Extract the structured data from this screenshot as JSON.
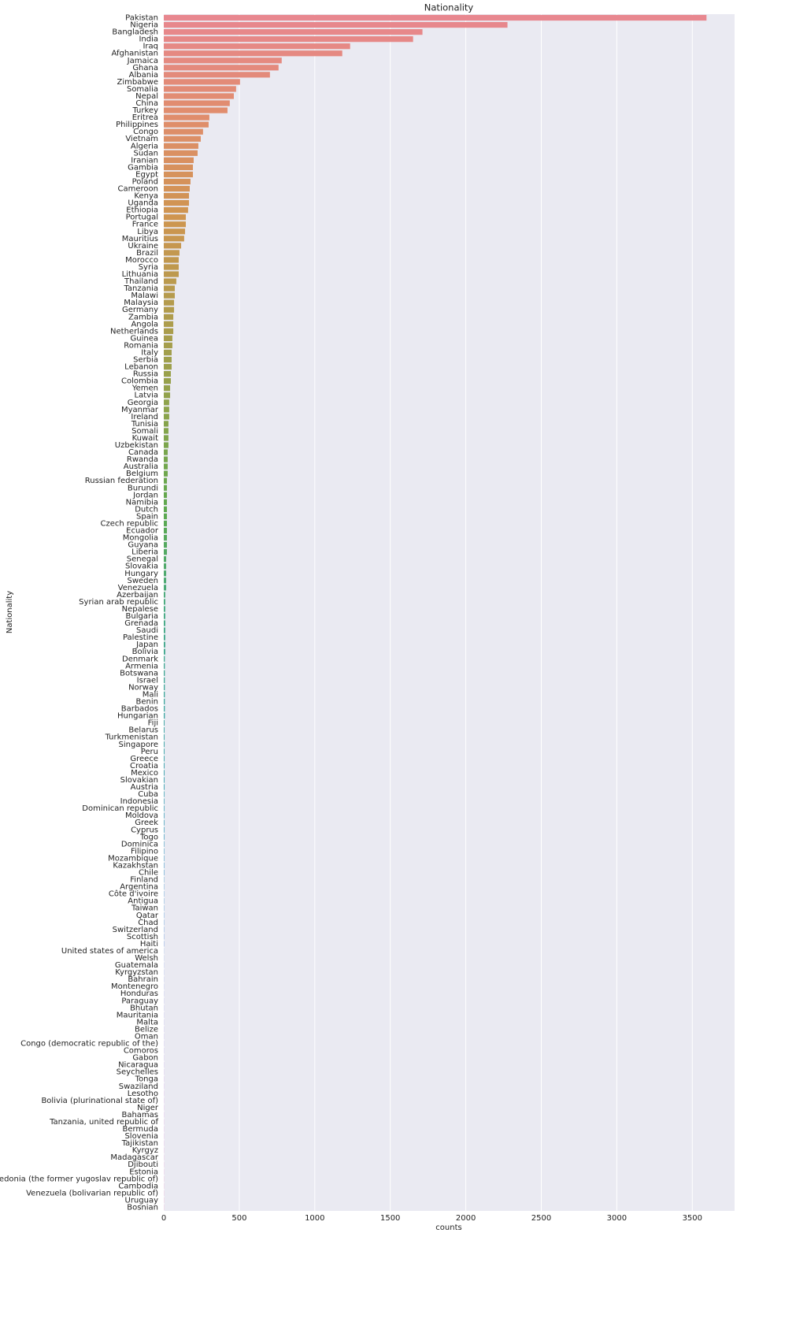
{
  "chart_data": {
    "type": "barh",
    "title": "Nationality",
    "xlabel": "counts",
    "ylabel": "Nationality",
    "categories": [
      "Pakistan",
      "Nigeria",
      "Bangladesh",
      "India",
      "Iraq",
      "Afghanistan",
      "Jamaica",
      "Ghana",
      "Albania",
      "Zimbabwe",
      "Somalia",
      "Nepal",
      "China",
      "Turkey",
      "Eritrea",
      "Philippines",
      "Congo",
      "Vietnam",
      "Algeria",
      "Sudan",
      "Iranian",
      "Gambia",
      "Egypt",
      "Poland",
      "Cameroon",
      "Kenya",
      "Uganda",
      "Ethiopia",
      "Portugal",
      "France",
      "Libya",
      "Mauritius",
      "Ukraine",
      "Brazil",
      "Morocco",
      "Syria",
      "Lithuania",
      "Thailand",
      "Tanzania",
      "Malawi",
      "Malaysia",
      "Germany",
      "Zambia",
      "Angola",
      "Netherlands",
      "Guinea",
      "Romania",
      "Italy",
      "Serbia",
      "Lebanon",
      "Russia",
      "Colombia",
      "Yemen",
      "Latvia",
      "Georgia",
      "Myanmar",
      "Ireland",
      "Tunisia",
      "Somali",
      "Kuwait",
      "Uzbekistan",
      "Canada",
      "Rwanda",
      "Australia",
      "Belgium",
      "Russian federation",
      "Burundi",
      "Jordan",
      "Namibia",
      "Dutch",
      "Spain",
      "Czech republic",
      "Ecuador",
      "Mongolia",
      "Guyana",
      "Liberia",
      "Senegal",
      "Slovakia",
      "Hungary",
      "Sweden",
      "Venezuela",
      "Azerbaijan",
      "Syrian arab republic",
      "Nepalese",
      "Bulgaria",
      "Grenada",
      "Saudi",
      "Palestine",
      "Japan",
      "Bolivia",
      "Denmark",
      "Armenia",
      "Botswana",
      "Israel",
      "Norway",
      "Mali",
      "Benin",
      "Barbados",
      "Hungarian",
      "Fiji",
      "Belarus",
      "Turkmenistan",
      "Singapore",
      "Peru",
      "Greece",
      "Croatia",
      "Mexico",
      "Slovakian",
      "Austria",
      "Cuba",
      "Indonesia",
      "Dominican republic",
      "Moldova",
      "Greek",
      "Cyprus",
      "Togo",
      "Dominica",
      "Filipino",
      "Mozambique",
      "Kazakhstan",
      "Chile",
      "Finland",
      "Argentina",
      "Côte d'ivoire",
      "Antigua",
      "Taiwan",
      "Qatar",
      "Chad",
      "Switzerland",
      "Scottish",
      "Haiti",
      "United states of america",
      "Welsh",
      "Guatemala",
      "Kyrgyzstan",
      "Bahrain",
      "Montenegro",
      "Honduras",
      "Paraguay",
      "Bhutan",
      "Mauritania",
      "Malta",
      "Belize",
      "Oman",
      "Congo (democratic republic of the)",
      "Comoros",
      "Gabon",
      "Nicaragua",
      "Seychelles",
      "Tonga",
      "Swaziland",
      "Lesotho",
      "Bolivia (plurinational state of)",
      "Niger",
      "Bahamas",
      "Tanzania, united republic of",
      "Bermuda",
      "Slovenia",
      "Tajikistan",
      "Kyrgyz",
      "Madagascar",
      "Djibouti",
      "Estonia",
      "Macedonia (the former yugoslav republic of)",
      "Cambodia",
      "Venezuela (bolivarian republic of)",
      "Uruguay",
      "Bosnian"
    ],
    "values": [
      3594,
      2276,
      1713,
      1651,
      1234,
      1182,
      781,
      760,
      703,
      505,
      479,
      464,
      437,
      422,
      302,
      297,
      260,
      245,
      229,
      224,
      198,
      193,
      193,
      177,
      172,
      167,
      167,
      161,
      146,
      146,
      141,
      135,
      115,
      104,
      99,
      99,
      99,
      83,
      73,
      73,
      68,
      68,
      63,
      63,
      63,
      57,
      57,
      52,
      52,
      52,
      47,
      47,
      42,
      42,
      36,
      36,
      36,
      31,
      31,
      31,
      31,
      26,
      26,
      26,
      26,
      21,
      21,
      21,
      21,
      21,
      21,
      21,
      21,
      21,
      21,
      21,
      16,
      16,
      16,
      16,
      16,
      10,
      10,
      10,
      10,
      10,
      10,
      10,
      10,
      10,
      7,
      7,
      7,
      7,
      7,
      7,
      7,
      7,
      7,
      5,
      5,
      5,
      5,
      5,
      5,
      5,
      5,
      5,
      5,
      4,
      4,
      4,
      4,
      4,
      4,
      4,
      3,
      3,
      3,
      3,
      3,
      2,
      2,
      2,
      2,
      2,
      2,
      2,
      2,
      2,
      2,
      1,
      1,
      1,
      1,
      1,
      1,
      1,
      1,
      1,
      1,
      1,
      1,
      1,
      1,
      1,
      1,
      1,
      1,
      1,
      1,
      1,
      1,
      1,
      1,
      1,
      1,
      1,
      1,
      1,
      1,
      1,
      1,
      1,
      1,
      1,
      1,
      1
    ],
    "palette": [
      "#e8878f",
      "#e08d6c",
      "#cf9550",
      "#b09c4c",
      "#8ba44b",
      "#5ca94f",
      "#47ab84",
      "#40a8a2",
      "#45a5bb",
      "#5ba0d8",
      "#9896e8",
      "#cc89dc",
      "#e487b6"
    ],
    "xlim": [
      0,
      3780
    ],
    "xticks": [
      0,
      500,
      1000,
      1500,
      2000,
      2500,
      3000,
      3500
    ],
    "grid": true
  }
}
